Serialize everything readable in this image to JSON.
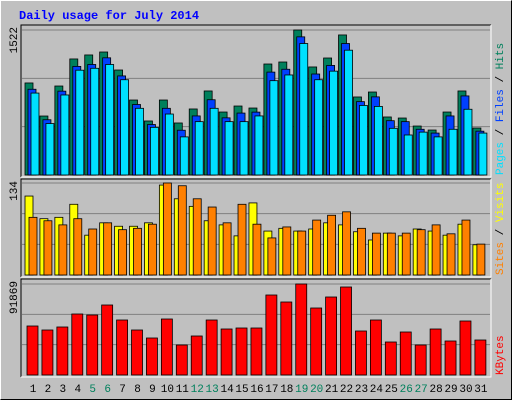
{
  "title": "Daily usage for July 2014",
  "chart_data": [
    {
      "type": "bar",
      "ylim": [
        0,
        1522
      ],
      "yticks": [
        1522
      ],
      "series": [
        {
          "name": "Hits",
          "color": "#00805c",
          "values": [
            966,
            619,
            934,
            1218,
            1260,
            1291,
            1102,
            787,
            567,
            787,
            546,
            693,
            882,
            661,
            724,
            703,
            1165,
            1186,
            1522,
            1134,
            1228,
            1470,
            819,
            871,
            609,
            598,
            514,
            472,
            661,
            882,
            493
          ]
        },
        {
          "name": "Files",
          "color": "#0040ff",
          "values": [
            900,
            580,
            880,
            1140,
            1160,
            1230,
            1040,
            740,
            530,
            700,
            470,
            620,
            790,
            600,
            650,
            660,
            1080,
            1110,
            1450,
            1060,
            1150,
            1380,
            770,
            820,
            570,
            560,
            480,
            440,
            620,
            830,
            460
          ]
        },
        {
          "name": "Pages",
          "color": "#00e0ff",
          "values": [
            860,
            540,
            840,
            1100,
            1120,
            1160,
            1000,
            700,
            500,
            640,
            400,
            560,
            700,
            560,
            560,
            620,
            990,
            1050,
            1380,
            1000,
            1090,
            1310,
            730,
            720,
            490,
            420,
            450,
            400,
            480,
            690,
            440
          ]
        }
      ]
    },
    {
      "type": "bar",
      "ylim": [
        0,
        134
      ],
      "yticks": [
        134
      ],
      "series": [
        {
          "name": "Visits",
          "color": "#ffff00",
          "values": [
            115,
            82,
            84,
            103,
            58,
            76,
            71,
            71,
            76,
            131,
            111,
            100,
            79,
            73,
            57,
            105,
            64,
            68,
            64,
            67,
            76,
            73,
            63,
            51,
            61,
            57,
            67,
            64,
            58,
            74,
            44
          ]
        },
        {
          "name": "Sites",
          "color": "#ff8000",
          "values": [
            84,
            79,
            73,
            82,
            67,
            76,
            66,
            68,
            74,
            134,
            130,
            111,
            99,
            76,
            103,
            74,
            54,
            70,
            64,
            80,
            87,
            92,
            68,
            61,
            61,
            61,
            66,
            73,
            60,
            80,
            45
          ]
        }
      ]
    },
    {
      "type": "bar",
      "ylim": [
        0,
        91869
      ],
      "yticks": [
        91869
      ],
      "categories": [
        "1",
        "2",
        "3",
        "4",
        "5",
        "6",
        "7",
        "8",
        "9",
        "10",
        "11",
        "12",
        "13",
        "14",
        "15",
        "16",
        "17",
        "18",
        "19",
        "20",
        "21",
        "22",
        "23",
        "24",
        "25",
        "26",
        "27",
        "28",
        "29",
        "30",
        "31"
      ],
      "highlighted": [
        "5",
        "6",
        "12",
        "13",
        "19",
        "20",
        "26",
        "27"
      ],
      "highlight_color": "#00805c",
      "series": [
        {
          "name": "KBytes",
          "color": "#ff0000",
          "values": [
            49468,
            45430,
            48459,
            61582,
            60573,
            70669,
            55525,
            45430,
            37353,
            56535,
            30287,
            39373,
            55525,
            46440,
            47449,
            47449,
            80764,
            73697,
            91869,
            67640,
            78745,
            88841,
            44420,
            55525,
            33315,
            43411,
            30287,
            46440,
            34325,
            54516,
            35334
          ]
        }
      ]
    }
  ]
}
